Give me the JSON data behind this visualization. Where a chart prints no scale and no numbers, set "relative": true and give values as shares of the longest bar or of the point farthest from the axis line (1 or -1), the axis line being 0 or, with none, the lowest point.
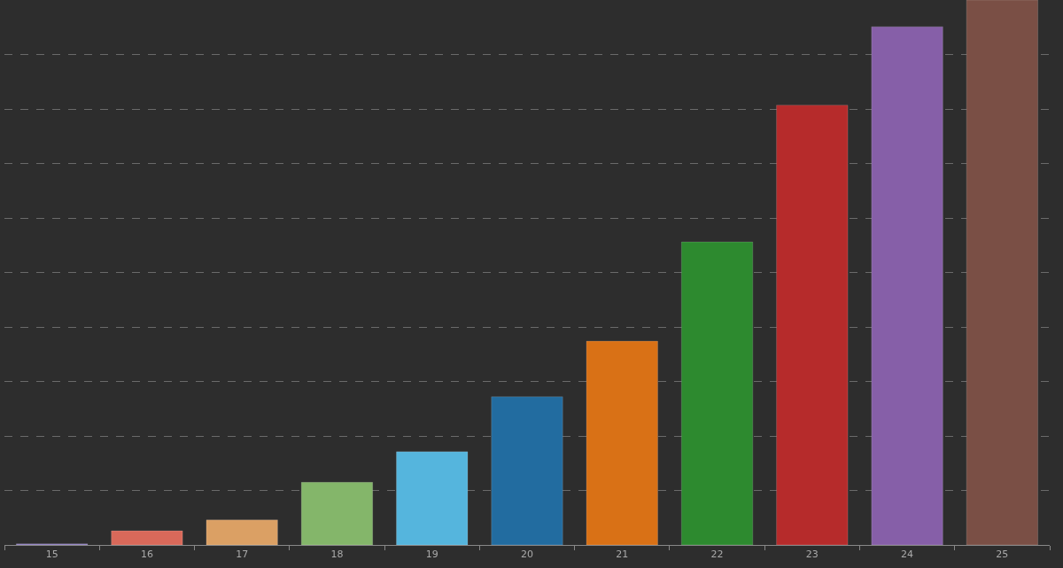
{
  "chart_data": {
    "type": "bar",
    "relative": true,
    "grid": "y",
    "legend": false,
    "categories": [
      "15",
      "16",
      "17",
      "18",
      "19",
      "20",
      "21",
      "22",
      "23",
      "24",
      "25"
    ],
    "values": [
      0.002,
      0.026,
      0.046,
      0.115,
      0.171,
      0.272,
      0.374,
      0.556,
      0.807,
      0.951,
      1
    ],
    "colors": [
      "#8e7cc3",
      "#d9695a",
      "#dba064",
      "#84b66a",
      "#55b5dd",
      "#226ca0",
      "#d97116",
      "#2d8a2f",
      "#b62b2b",
      "#865fa8",
      "#7a4f45"
    ]
  }
}
